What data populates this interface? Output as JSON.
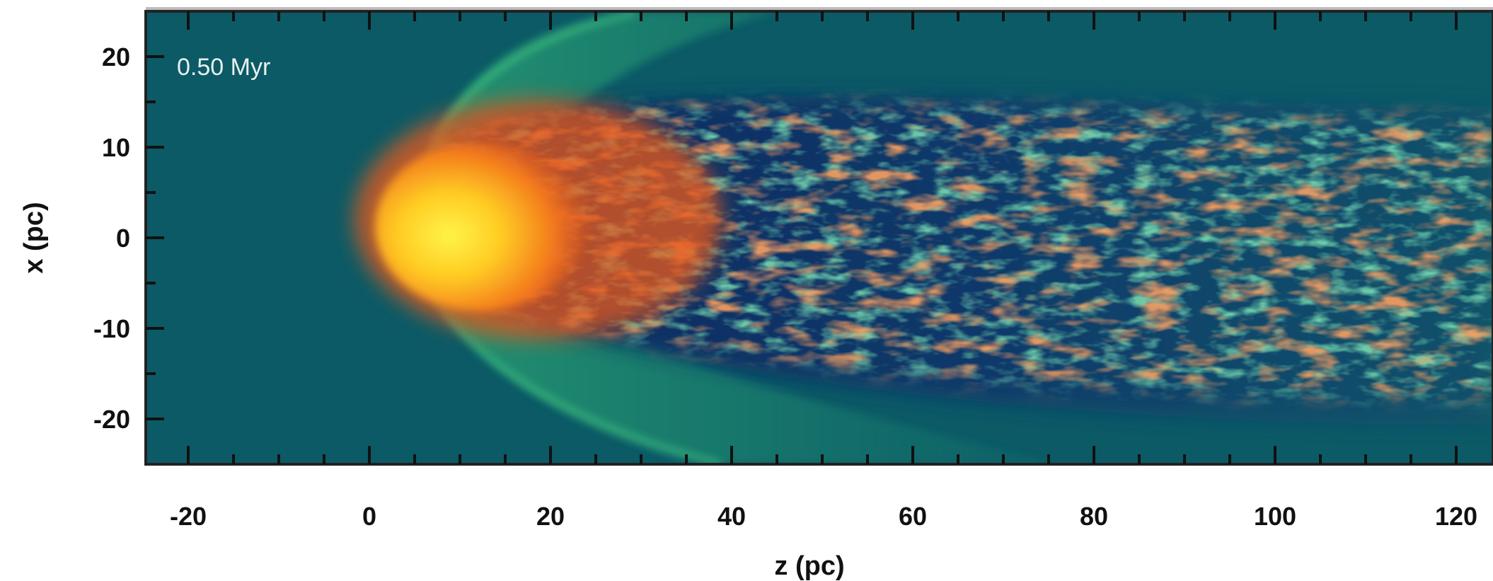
{
  "chart_data": {
    "type": "heatmap",
    "title": "",
    "annotation": "0.50 Myr",
    "xlabel": "z (pc)",
    "ylabel": "x (pc)",
    "xlim": [
      -25,
      125
    ],
    "ylim": [
      -25,
      25
    ],
    "xticks": [
      -20,
      0,
      20,
      40,
      60,
      80,
      100,
      120
    ],
    "yticks": [
      20,
      10,
      0,
      -10,
      -20
    ],
    "grid": false,
    "legend": "none",
    "colormap": {
      "background": "#0b5a66",
      "low": "#0f2e63",
      "mid": "#2fbf7a",
      "high": "#f05a1e",
      "peak": "#ffe21a"
    },
    "features": [
      {
        "name": "cloud-head",
        "z": 8,
        "x": 0,
        "intensity": "peak"
      },
      {
        "name": "bow-shock",
        "z_apex": 3,
        "x_extent": [
          -25,
          25
        ],
        "intensity": "mid"
      },
      {
        "name": "turbulent-tail",
        "z_range": [
          15,
          125
        ],
        "x_range": [
          -20,
          20
        ],
        "intensity": "high"
      }
    ]
  }
}
